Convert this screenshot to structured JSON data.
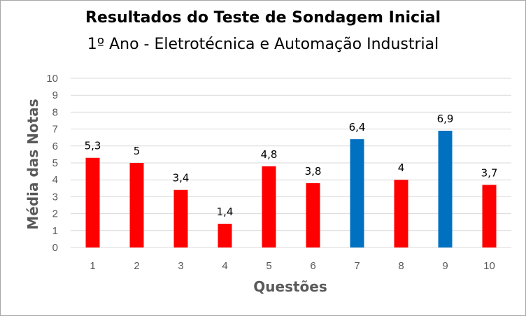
{
  "chart_data": {
    "type": "bar",
    "title": "Resultados do Teste de Sondagem Inicial",
    "subtitle": "1º Ano - Eletrotécnica e Automação Industrial",
    "xlabel": "Questões",
    "ylabel": "Média das Notas",
    "ylim": [
      0,
      10
    ],
    "yticks": [
      0,
      1,
      2,
      3,
      4,
      5,
      6,
      7,
      8,
      9,
      10
    ],
    "grid": true,
    "legend": "none",
    "categories": [
      "1",
      "2",
      "3",
      "4",
      "5",
      "6",
      "7",
      "8",
      "9",
      "10"
    ],
    "values": [
      5.3,
      5,
      3.4,
      1.4,
      4.8,
      3.8,
      6.4,
      4,
      6.9,
      3.7
    ],
    "data_labels": [
      "5,3",
      "5",
      "3,4",
      "1,4",
      "4,8",
      "3,8",
      "6,4",
      "4",
      "6,9",
      "3,7"
    ],
    "colors": [
      "#ff0000",
      "#ff0000",
      "#ff0000",
      "#ff0000",
      "#ff0000",
      "#ff0000",
      "#0070c0",
      "#ff0000",
      "#0070c0",
      "#ff0000"
    ],
    "grid_color": "#d9d9d9",
    "axis_color": "#d9d9d9"
  }
}
